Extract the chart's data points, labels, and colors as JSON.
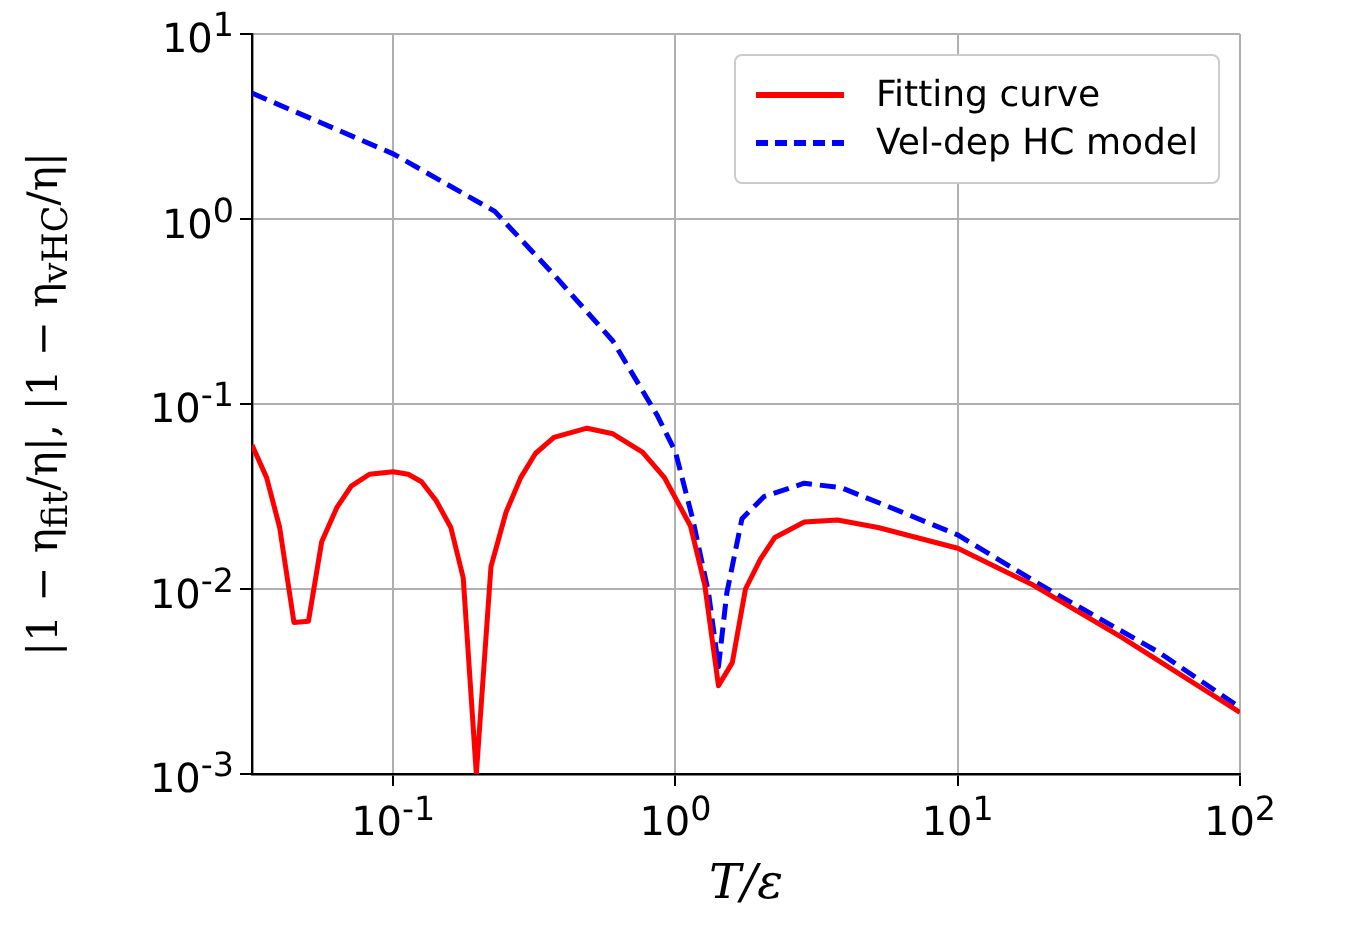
{
  "chart_data": {
    "type": "line",
    "xlabel": "T/ε",
    "ylabel": "|1 − η$_{fit}$/η|, |1 − η$_{vHC}$/η|",
    "log": "xy",
    "grid": true,
    "legend": "top right",
    "marker": "none",
    "xlim": [
      0.0316,
      100
    ],
    "ylim": [
      0.001,
      10
    ],
    "xticks": [
      {
        "value": 0.1,
        "label": "10$^{-1}$"
      },
      {
        "value": 1,
        "label": "10$^{0}$"
      },
      {
        "value": 10,
        "label": "10$^{1}$"
      },
      {
        "value": 100,
        "label": "10$^{2}$"
      }
    ],
    "yticks": [
      {
        "value": 0.001,
        "label": "10$^{-3}$"
      },
      {
        "value": 0.01,
        "label": "10$^{-2}$"
      },
      {
        "value": 0.1,
        "label": "10$^{-1}$"
      },
      {
        "value": 1,
        "label": "10$^{0}$"
      },
      {
        "value": 10,
        "label": "10$^{1}$"
      }
    ],
    "series": [
      {
        "name": "Fitting curve",
        "color": "#ff0000",
        "line_style": "solid",
        "x": [
          0.0316,
          0.0356,
          0.0396,
          0.0445,
          0.0501,
          0.0558,
          0.0631,
          0.071,
          0.0824,
          0.1,
          0.113,
          0.126,
          0.142,
          0.16,
          0.177,
          0.197,
          0.222,
          0.251,
          0.283,
          0.319,
          0.371,
          0.486,
          0.6,
          0.764,
          0.914,
          1.13,
          1.27,
          1.42,
          1.59,
          1.77,
          2.0,
          2.25,
          2.86,
          3.75,
          5.22,
          10,
          18.5,
          38,
          100
        ],
        "values": [
          0.06,
          0.04,
          0.0215,
          0.0066,
          0.0067,
          0.018,
          0.0275,
          0.036,
          0.0417,
          0.043,
          0.0417,
          0.038,
          0.03,
          0.0215,
          0.0115,
          0.001,
          0.0132,
          0.026,
          0.04,
          0.054,
          0.066,
          0.074,
          0.069,
          0.055,
          0.04,
          0.0219,
          0.0105,
          0.003,
          0.004,
          0.01,
          0.0145,
          0.019,
          0.023,
          0.0236,
          0.0215,
          0.0166,
          0.0105,
          0.0055,
          0.00215
        ]
      },
      {
        "name": "Vel-dep HC model",
        "color": "#0000ff",
        "line_style": "dashed",
        "x": [
          0.0316,
          0.1,
          0.229,
          0.371,
          0.6,
          0.861,
          1,
          1.15,
          1.31,
          1.42,
          1.52,
          1.72,
          2.06,
          2.86,
          3.86,
          6.25,
          10,
          20.8,
          51.3,
          100
        ],
        "values": [
          4.79,
          2.25,
          1.1,
          0.5,
          0.219,
          0.087,
          0.055,
          0.024,
          0.0095,
          0.0038,
          0.0095,
          0.024,
          0.0316,
          0.0373,
          0.0353,
          0.0263,
          0.0196,
          0.01,
          0.00457,
          0.00229
        ]
      }
    ]
  }
}
